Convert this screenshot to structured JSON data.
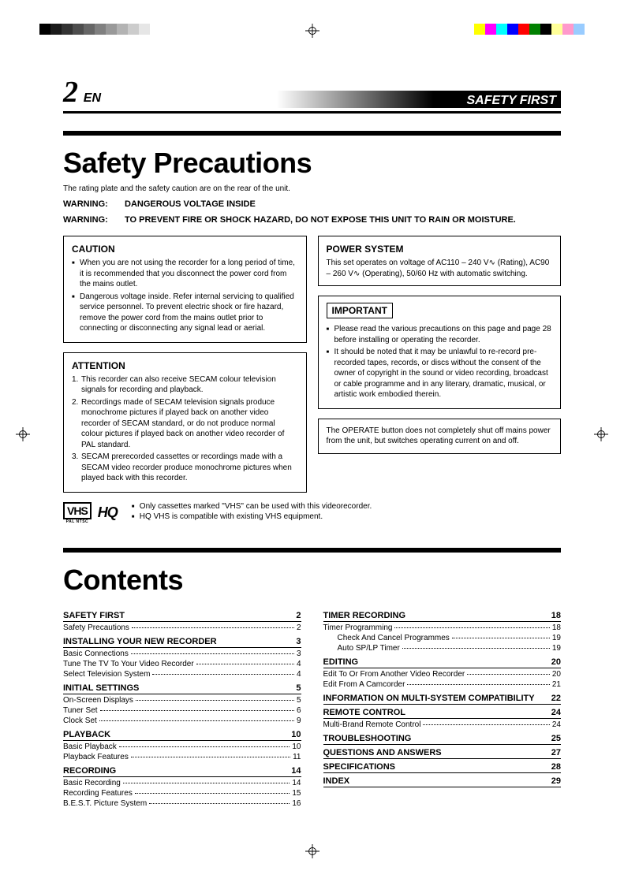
{
  "printer_marks": {
    "grayscale": [
      "#000000",
      "#1a1a1a",
      "#333333",
      "#4d4d4d",
      "#666666",
      "#808080",
      "#999999",
      "#b3b3b3",
      "#cccccc",
      "#e6e6e6"
    ],
    "colors": [
      "#ffff00",
      "#ff00ff",
      "#00ffff",
      "#0000ff",
      "#ff0000",
      "#008000",
      "#000000",
      "#ffff99",
      "#ff99cc",
      "#99ccff"
    ]
  },
  "header": {
    "page_num": "2",
    "lang": "EN",
    "tag": "SAFETY FIRST"
  },
  "safety": {
    "title": "Safety Precautions",
    "subtitle": "The rating plate and the safety caution are on the rear of the unit.",
    "warn_label": "WARNING:",
    "warn1": "DANGEROUS VOLTAGE INSIDE",
    "warn2": "TO PREVENT FIRE OR SHOCK HAZARD, DO NOT EXPOSE THIS UNIT TO RAIN OR MOISTURE.",
    "caution": {
      "title": "CAUTION",
      "items": [
        "When you are not using the recorder for a long period of time, it is recommended that you disconnect the power cord from the mains outlet.",
        "Dangerous voltage inside. Refer internal servicing to qualified service personnel. To prevent electric shock or fire hazard, remove the power cord from the mains outlet prior to connecting or disconnecting any signal lead or aerial."
      ]
    },
    "attention": {
      "title": "ATTENTION",
      "items": [
        "This recorder can also receive SECAM colour television signals for recording and playback.",
        "Recordings made of SECAM television signals produce monochrome pictures if played back on another video recorder of SECAM standard, or do not produce normal colour pictures if played back on another video recorder of PAL standard.",
        "SECAM prerecorded cassettes or recordings made with a SECAM video recorder produce monochrome pictures when played back with this recorder."
      ]
    },
    "power": {
      "title": "POWER SYSTEM",
      "text": "This set operates on voltage of AC110 – 240 V∿ (Rating), AC90 – 260 V∿ (Operating), 50/60 Hz with automatic switching."
    },
    "important": {
      "title": "IMPORTANT",
      "items": [
        "Please read the various precautions on this page and page 28 before installing or operating the recorder.",
        "It should be noted that it may be unlawful to re-record pre-recorded tapes, records, or discs without the consent of the owner of copyright in the sound or video recording, broadcast or cable programme and in any literary, dramatic, musical, or artistic work embodied therein."
      ]
    },
    "operate_note": "The OPERATE button does not completely shut off mains power from the unit, but switches operating current on and off.",
    "vhs_notes": [
      "Only cassettes marked \"VHS\" can be used with this videorecorder.",
      "HQ VHS is compatible with existing VHS equipment."
    ],
    "vhs_logo": "VHS",
    "vhs_sub": "PAL NTSC",
    "hq_logo": "HQ"
  },
  "contents": {
    "title": "Contents",
    "left": [
      {
        "type": "sec",
        "label": "SAFETY FIRST",
        "page": "2"
      },
      {
        "type": "item",
        "label": "Safety Precautions",
        "page": "2"
      },
      {
        "type": "sec",
        "label": "INSTALLING YOUR NEW RECORDER",
        "page": "3"
      },
      {
        "type": "item",
        "label": "Basic Connections",
        "page": "3"
      },
      {
        "type": "item",
        "label": "Tune The TV To Your Video Recorder",
        "page": "4"
      },
      {
        "type": "item",
        "label": "Select Television System",
        "page": "4"
      },
      {
        "type": "sec",
        "label": "INITIAL SETTINGS",
        "page": "5"
      },
      {
        "type": "item",
        "label": "On-Screen Displays",
        "page": "5"
      },
      {
        "type": "item",
        "label": "Tuner Set",
        "page": "6"
      },
      {
        "type": "item",
        "label": "Clock Set",
        "page": "9"
      },
      {
        "type": "sec",
        "label": "PLAYBACK",
        "page": "10"
      },
      {
        "type": "item",
        "label": "Basic Playback",
        "page": "10"
      },
      {
        "type": "item",
        "label": "Playback Features",
        "page": "11"
      },
      {
        "type": "sec",
        "label": "RECORDING",
        "page": "14"
      },
      {
        "type": "item",
        "label": "Basic Recording",
        "page": "14"
      },
      {
        "type": "item",
        "label": "Recording Features",
        "page": "15"
      },
      {
        "type": "item",
        "label": "B.E.S.T. Picture System",
        "page": "16"
      }
    ],
    "right": [
      {
        "type": "sec",
        "label": "TIMER RECORDING",
        "page": "18"
      },
      {
        "type": "item",
        "label": "Timer Programming",
        "page": "18"
      },
      {
        "type": "item",
        "indent": true,
        "label": "Check And Cancel Programmes",
        "page": "19"
      },
      {
        "type": "item",
        "indent": true,
        "label": "Auto SP/LP Timer",
        "page": "19"
      },
      {
        "type": "sec",
        "label": "EDITING",
        "page": "20"
      },
      {
        "type": "item",
        "label": "Edit To Or From Another Video Recorder",
        "page": "20"
      },
      {
        "type": "item",
        "label": "Edit From A Camcorder",
        "page": "21"
      },
      {
        "type": "sec",
        "label": "INFORMATION ON MULTI-SYSTEM COMPATIBILITY",
        "page": "22"
      },
      {
        "type": "sec",
        "label": "REMOTE CONTROL",
        "page": "24"
      },
      {
        "type": "item",
        "label": "Multi-Brand Remote Control",
        "page": "24"
      },
      {
        "type": "sec",
        "label": "TROUBLESHOOTING",
        "page": "25"
      },
      {
        "type": "sec",
        "label": "QUESTIONS AND ANSWERS",
        "page": "27"
      },
      {
        "type": "sec",
        "label": "SPECIFICATIONS",
        "page": "28"
      },
      {
        "type": "sec",
        "label": "INDEX",
        "page": "29"
      }
    ]
  }
}
